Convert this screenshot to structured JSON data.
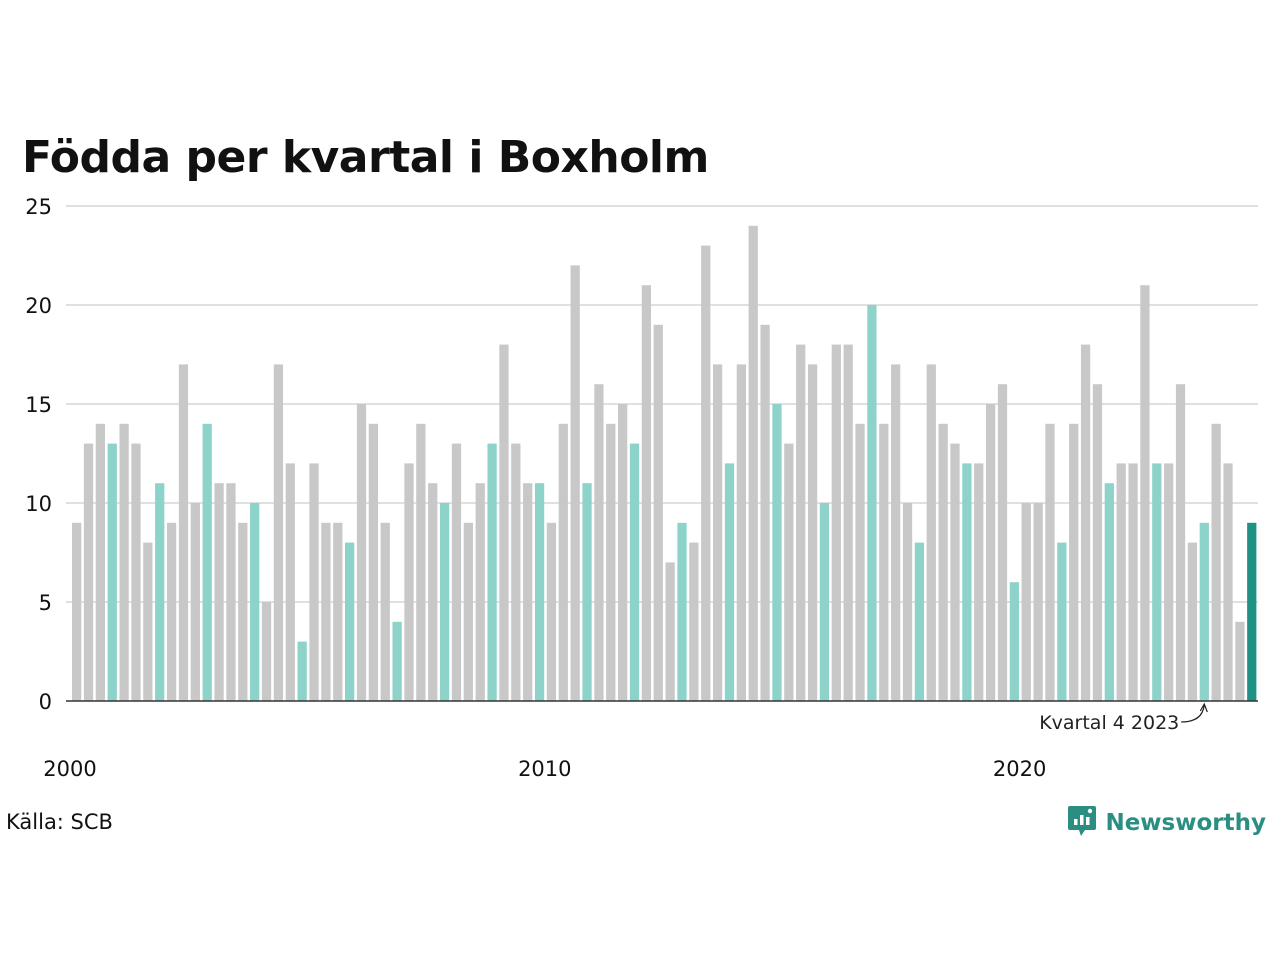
{
  "title": "Födda per kvartal i Boxholm",
  "source": "Källa: SCB",
  "brand": {
    "name": "Newsworthy",
    "icon": "newsworthy-logo-icon"
  },
  "colors": {
    "bar_default": "#c8c8c8",
    "bar_q4": "#8dd3ca",
    "bar_latest": "#1e9384",
    "grid": "#e0e0e0",
    "axis": "#333333",
    "brand": "#2a8f82"
  },
  "chart_data": {
    "type": "bar",
    "title": "Födda per kvartal i Boxholm",
    "xlabel": "",
    "ylabel": "",
    "ylim": [
      0,
      25
    ],
    "yticks": [
      0,
      5,
      10,
      15,
      20,
      25
    ],
    "grid": true,
    "x_tick_labels": [
      {
        "label": "2000",
        "year": 2000
      },
      {
        "label": "2010",
        "year": 2010
      },
      {
        "label": "2020",
        "year": 2020
      }
    ],
    "start": {
      "year": 2000,
      "quarter": 1
    },
    "highlight": "quarter 4 bars highlighted; latest bar emphasized",
    "annotation": {
      "text": "Kvartal 4 2023",
      "target_year": 2023,
      "target_quarter": 4
    },
    "values": [
      9,
      13,
      14,
      13,
      14,
      13,
      8,
      11,
      9,
      17,
      10,
      14,
      11,
      11,
      9,
      10,
      5,
      17,
      12,
      3,
      12,
      9,
      9,
      8,
      15,
      14,
      9,
      4,
      12,
      14,
      11,
      10,
      13,
      9,
      11,
      13,
      18,
      13,
      11,
      11,
      9,
      14,
      22,
      11,
      16,
      14,
      15,
      13,
      21,
      19,
      7,
      9,
      8,
      23,
      17,
      12,
      17,
      24,
      19,
      15,
      13,
      18,
      17,
      10,
      18,
      18,
      14,
      20,
      14,
      17,
      10,
      8,
      17,
      14,
      13,
      12,
      12,
      15,
      16,
      6,
      10,
      10,
      14,
      8,
      14,
      18,
      16,
      11,
      12,
      12,
      21,
      12,
      12,
      16,
      8,
      9,
      14,
      12,
      4,
      9
    ]
  }
}
